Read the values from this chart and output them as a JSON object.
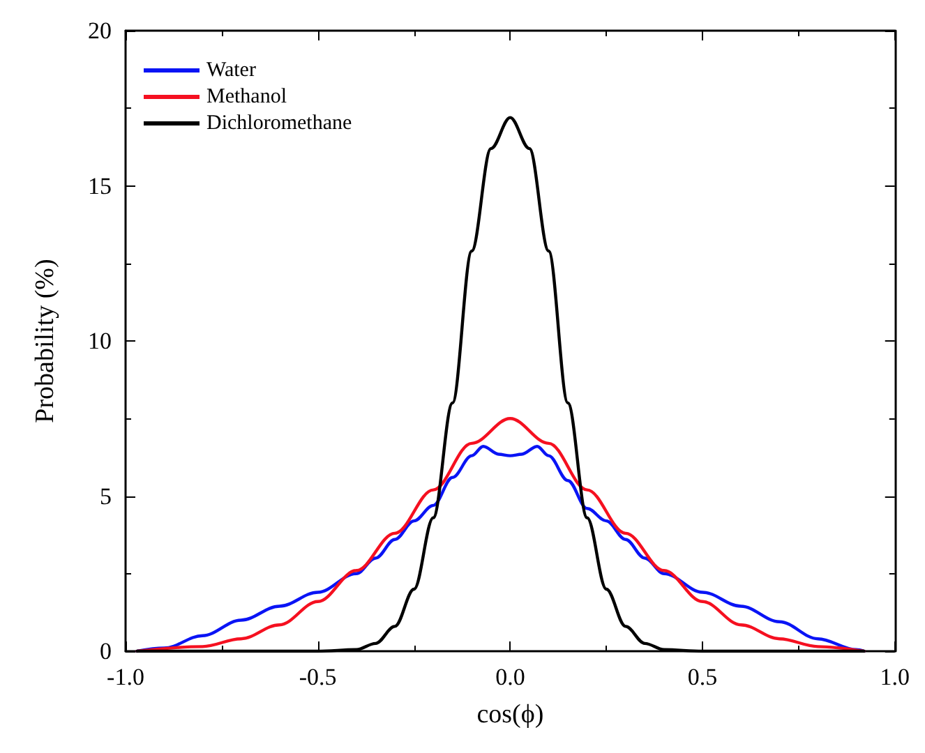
{
  "chart_data": {
    "type": "line",
    "xlabel": "cos(ϕ)",
    "ylabel": "Probability (%)",
    "xlim": [
      -1.0,
      1.0
    ],
    "xticks": [
      {
        "value": -1.0,
        "label": "-1.0"
      },
      {
        "value": -0.5,
        "label": "-0.5"
      },
      {
        "value": 0,
        "label": "0.0"
      },
      {
        "value": 0.5,
        "label": "0.5"
      },
      {
        "value": 1.0,
        "label": "1.0"
      }
    ],
    "ylim": [
      0,
      20
    ],
    "yticks": [
      0,
      5,
      10,
      15,
      20
    ],
    "grid": false,
    "legend": "top left",
    "marker": "none",
    "line_style": "solid",
    "series": [
      {
        "name": "Water",
        "color": "#0a14f5",
        "x": [
          -0.97,
          -0.9,
          -0.8,
          -0.7,
          -0.6,
          -0.5,
          -0.4,
          -0.35,
          -0.3,
          -0.25,
          -0.2,
          -0.15,
          -0.1,
          -0.07,
          -0.03,
          0,
          0.03,
          0.07,
          0.1,
          0.15,
          0.2,
          0.25,
          0.3,
          0.35,
          0.4,
          0.5,
          0.6,
          0.7,
          0.8,
          0.9,
          0.92
        ],
        "values": [
          0,
          0.1,
          0.5,
          1.0,
          1.45,
          1.9,
          2.5,
          3.0,
          3.6,
          4.2,
          4.7,
          5.6,
          6.3,
          6.6,
          6.35,
          6.3,
          6.35,
          6.6,
          6.3,
          5.5,
          4.6,
          4.2,
          3.6,
          3.0,
          2.5,
          1.9,
          1.45,
          0.95,
          0.4,
          0.05,
          0
        ]
      },
      {
        "name": "Methanol",
        "color": "#f51020",
        "x": [
          -0.97,
          -0.8,
          -0.7,
          -0.6,
          -0.5,
          -0.4,
          -0.3,
          -0.2,
          -0.1,
          0,
          0.1,
          0.2,
          0.3,
          0.4,
          0.5,
          0.6,
          0.7,
          0.8,
          0.92
        ],
        "values": [
          0,
          0.15,
          0.4,
          0.85,
          1.6,
          2.6,
          3.8,
          5.2,
          6.7,
          7.5,
          6.7,
          5.2,
          3.8,
          2.6,
          1.6,
          0.85,
          0.4,
          0.15,
          0
        ]
      },
      {
        "name": "Dichloromethane",
        "color": "#000000",
        "x": [
          -0.97,
          -0.5,
          -0.4,
          -0.35,
          -0.3,
          -0.25,
          -0.2,
          -0.15,
          -0.1,
          -0.05,
          0,
          0.05,
          0.1,
          0.15,
          0.2,
          0.25,
          0.3,
          0.35,
          0.4,
          0.5,
          0.92
        ],
        "values": [
          0,
          0,
          0.05,
          0.25,
          0.8,
          2.0,
          4.3,
          8.0,
          12.9,
          16.2,
          17.2,
          16.2,
          12.9,
          8.0,
          4.3,
          2.0,
          0.8,
          0.25,
          0.05,
          0,
          0
        ]
      }
    ]
  }
}
